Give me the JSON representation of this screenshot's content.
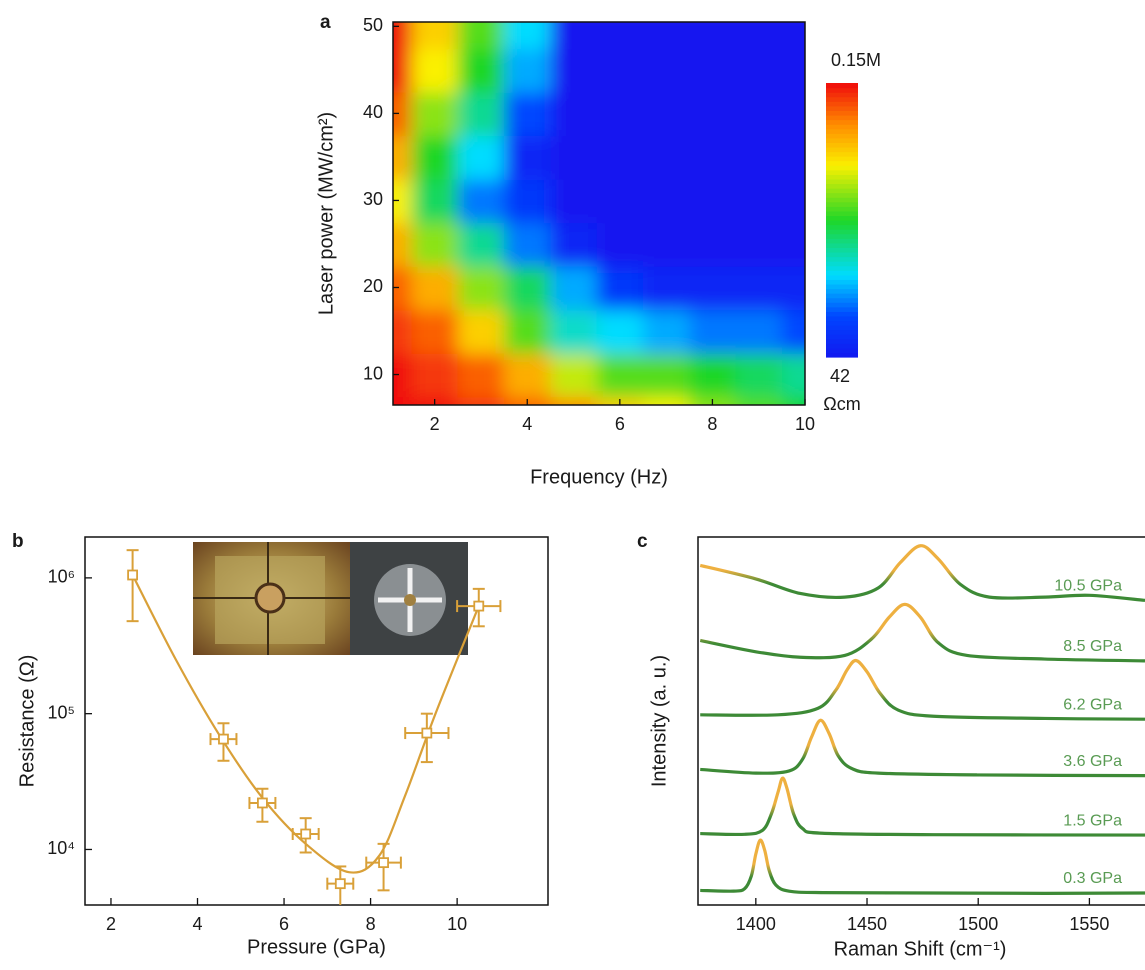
{
  "chart_data": [
    {
      "type": "heatmap",
      "label": "a",
      "x": [
        1,
        2,
        3,
        4,
        5,
        6,
        7,
        8,
        9,
        10
      ],
      "y": [
        5,
        10,
        15,
        20,
        25,
        30,
        35,
        40,
        45,
        50
      ],
      "z": [
        [
          150000,
          150000,
          99600,
          66300,
          44000,
          19400,
          12900,
          5660,
          3770,
          2510
        ],
        [
          150000,
          99600,
          66300,
          29200,
          8560,
          3770,
          3770,
          2510,
          1670,
          1110
        ],
        [
          99600,
          66300,
          19400,
          3770,
          737,
          488,
          324,
          215,
          215,
          143
        ],
        [
          66300,
          29200,
          5660,
          1670,
          324,
          95,
          63,
          63,
          63,
          63
        ],
        [
          29200,
          5660,
          1110,
          215,
          63,
          42,
          42,
          42,
          42,
          42
        ],
        [
          12900,
          1670,
          215,
          95,
          42,
          42,
          42,
          42,
          42,
          42
        ],
        [
          29200,
          2510,
          488,
          63,
          42,
          42,
          42,
          42,
          42,
          42
        ],
        [
          66300,
          5660,
          1110,
          143,
          42,
          42,
          42,
          42,
          42,
          42
        ],
        [
          150000,
          12900,
          2510,
          324,
          42,
          42,
          42,
          42,
          42,
          42
        ],
        [
          150000,
          19400,
          3770,
          488,
          42,
          42,
          42,
          42,
          42,
          42
        ]
      ],
      "xlim": [
        1.1,
        10
      ],
      "ylim": [
        6.5,
        50.5
      ],
      "xticks": [
        2,
        4,
        6,
        8,
        10
      ],
      "yticks": [
        10,
        20,
        30,
        40,
        50
      ],
      "xlabel": "Frequency  (Hz)",
      "ylabel": "Laser power (MW/cm²)",
      "zlim": [
        42,
        150000
      ],
      "zlog": true,
      "colormap": "jet",
      "zticks": [
        {
          "value": 150000,
          "label": "0.15M"
        },
        42
      ],
      "zunit": "Ωcm"
    },
    {
      "type": "scatter",
      "label": "b",
      "series": [
        {
          "color": "#d9a038",
          "x": [
            2.5,
            4.6,
            5.5,
            6.5,
            7.3,
            8.3,
            9.3,
            10.5
          ],
          "values": [
            1050000,
            65000,
            22000,
            13000,
            5600,
            8000,
            72000,
            620000
          ],
          "xerr": [
            0,
            0.3,
            0.3,
            0.3,
            0.3,
            0.4,
            0.5,
            0.5
          ],
          "yerr_minus": [
            570000,
            20000,
            6000,
            3500,
            1800,
            3000,
            28000,
            180000
          ],
          "yerr_plus": [
            550000,
            20000,
            6000,
            4000,
            1900,
            3000,
            28000,
            210000
          ]
        }
      ],
      "curve": {
        "x": [
          2.5,
          3.5,
          4.5,
          5.5,
          6.5,
          7.5,
          8.2,
          8.8,
          9.5,
          10.5
        ],
        "values": [
          1050000,
          250000,
          70000,
          24000,
          11000,
          6800,
          9000,
          25000,
          100000,
          620000
        ]
      },
      "xlim": [
        1.4,
        12.1
      ],
      "ylim": [
        3900,
        2000000
      ],
      "log_y": true,
      "xticks": [
        2,
        4,
        6,
        8,
        10
      ],
      "yticks": [
        {
          "value": 10000,
          "label": "10⁴"
        },
        {
          "value": 100000,
          "label": "10⁵"
        },
        {
          "value": 1000000,
          "label": "10⁶"
        }
      ],
      "xlabel": "Pressure (GPa)",
      "ylabel": "Resistance (Ω)"
    },
    {
      "type": "line",
      "label": "c",
      "line_color": "#3d8a36",
      "peak_color": "#eeb040",
      "series": [
        {
          "name": "0.3 GPa",
          "x": [
            1375,
            1390,
            1395,
            1398,
            1400,
            1402,
            1404,
            1406,
            1409,
            1415,
            1430,
            1480,
            1530,
            1575
          ],
          "values": [
            0.4,
            0.38,
            0.45,
            0.8,
            1.4,
            1.78,
            1.5,
            0.95,
            0.55,
            0.38,
            0.34,
            0.33,
            0.32,
            0.33
          ]
        },
        {
          "name": "1.5 GPa",
          "x": [
            1375,
            1395,
            1403,
            1407,
            1410,
            1412,
            1414,
            1417,
            1421,
            1430,
            1480,
            1575
          ],
          "values": [
            1.96,
            1.94,
            2.05,
            2.5,
            3.1,
            3.48,
            3.2,
            2.5,
            2.1,
            1.97,
            1.93,
            1.92
          ]
        },
        {
          "name": "3.6 GPa",
          "x": [
            1375,
            1400,
            1415,
            1421,
            1425,
            1429,
            1433,
            1437,
            1443,
            1455,
            1500,
            1575
          ],
          "values": [
            3.72,
            3.62,
            3.68,
            4.0,
            4.6,
            5.07,
            4.7,
            4.1,
            3.75,
            3.62,
            3.57,
            3.55
          ]
        },
        {
          "name": "6.2 GPa",
          "x": [
            1375,
            1410,
            1428,
            1436,
            1441,
            1445,
            1450,
            1456,
            1464,
            1480,
            1530,
            1575
          ],
          "values": [
            5.22,
            5.22,
            5.4,
            5.9,
            6.45,
            6.71,
            6.4,
            5.8,
            5.35,
            5.18,
            5.12,
            5.1
          ]
        },
        {
          "name": "8.5 GPa",
          "x": [
            1375,
            1400,
            1420,
            1440,
            1452,
            1460,
            1467,
            1474,
            1482,
            1495,
            1530,
            1575
          ],
          "values": [
            7.26,
            6.95,
            6.8,
            6.85,
            7.3,
            7.9,
            8.25,
            7.9,
            7.2,
            6.85,
            6.75,
            6.7
          ]
        },
        {
          "name": "10.5 GPa",
          "x": [
            1375,
            1400,
            1420,
            1440,
            1455,
            1465,
            1474,
            1482,
            1492,
            1505,
            1530,
            1550,
            1575
          ],
          "values": [
            9.32,
            8.95,
            8.55,
            8.45,
            8.7,
            9.4,
            9.86,
            9.5,
            8.8,
            8.45,
            8.45,
            8.5,
            8.36
          ]
        }
      ],
      "xlim": [
        1374,
        1575
      ],
      "ylim": [
        0,
        10.1
      ],
      "xticks": [
        1400,
        1450,
        1500,
        1550
      ],
      "xlabel": "Raman Shift (cm⁻¹)",
      "ylabel": "Intensity (a. u.)"
    }
  ]
}
